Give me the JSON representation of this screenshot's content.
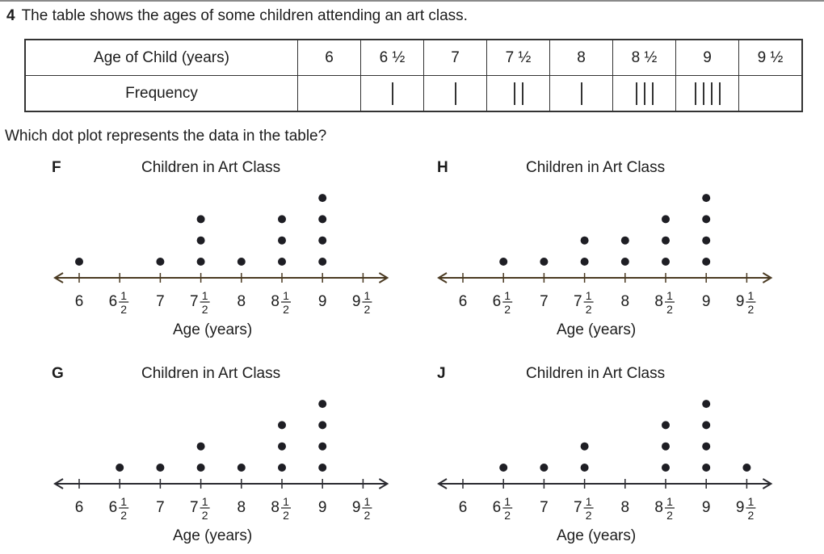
{
  "question": {
    "number": "4",
    "text": "The table shows the ages of some children attending an art class."
  },
  "table": {
    "row_headers": [
      "Age of Child (years)",
      "Frequency"
    ],
    "ages": [
      "6",
      "6 ½",
      "7",
      "7 ½",
      "8",
      "8 ½",
      "9",
      "9 ½"
    ],
    "tallies": [
      0,
      1,
      1,
      2,
      1,
      3,
      4,
      0
    ]
  },
  "prompt": "Which dot plot represents the data in the table?",
  "chart_data": [
    {
      "type": "scatter",
      "subtype": "dot-plot",
      "option": "F",
      "title": "Children in Art Class",
      "xlabel": "Age (years)",
      "tick_values": [
        6,
        6.5,
        7,
        7.5,
        8,
        8.5,
        9,
        9.5
      ],
      "tick_whole": [
        "6",
        "6",
        "7",
        "7",
        "8",
        "8",
        "9",
        "9"
      ],
      "tick_has_half": [
        false,
        true,
        false,
        true,
        false,
        true,
        false,
        true
      ],
      "half_num": "1",
      "half_den": "2",
      "xlim": [
        6,
        9.5
      ],
      "counts": [
        1,
        0,
        1,
        3,
        1,
        3,
        4,
        0
      ]
    },
    {
      "type": "scatter",
      "subtype": "dot-plot",
      "option": "H",
      "title": "Children in Art Class",
      "xlabel": "Age (years)",
      "tick_values": [
        6,
        6.5,
        7,
        7.5,
        8,
        8.5,
        9,
        9.5
      ],
      "tick_whole": [
        "6",
        "6",
        "7",
        "7",
        "8",
        "8",
        "9",
        "9"
      ],
      "tick_has_half": [
        false,
        true,
        false,
        true,
        false,
        true,
        false,
        true
      ],
      "half_num": "1",
      "half_den": "2",
      "xlim": [
        6,
        9.5
      ],
      "counts": [
        0,
        1,
        1,
        2,
        2,
        3,
        4,
        0
      ]
    },
    {
      "type": "scatter",
      "subtype": "dot-plot",
      "option": "G",
      "title": "Children in Art Class",
      "xlabel": "Age (years)",
      "tick_values": [
        6,
        6.5,
        7,
        7.5,
        8,
        8.5,
        9,
        9.5
      ],
      "tick_whole": [
        "6",
        "6",
        "7",
        "7",
        "8",
        "8",
        "9",
        "9"
      ],
      "tick_has_half": [
        false,
        true,
        false,
        true,
        false,
        true,
        false,
        true
      ],
      "half_num": "1",
      "half_den": "2",
      "xlim": [
        6,
        9.5
      ],
      "counts": [
        0,
        1,
        1,
        2,
        1,
        3,
        4,
        0
      ]
    },
    {
      "type": "scatter",
      "subtype": "dot-plot",
      "option": "J",
      "title": "Children in Art Class",
      "xlabel": "Age (years)",
      "tick_values": [
        6,
        6.5,
        7,
        7.5,
        8,
        8.5,
        9,
        9.5
      ],
      "tick_whole": [
        "6",
        "6",
        "7",
        "7",
        "8",
        "8",
        "9",
        "9"
      ],
      "tick_has_half": [
        false,
        true,
        false,
        true,
        false,
        true,
        false,
        true
      ],
      "half_num": "1",
      "half_den": "2",
      "xlim": [
        6,
        9.5
      ],
      "counts": [
        0,
        1,
        1,
        2,
        0,
        3,
        4,
        1
      ]
    }
  ],
  "colors": {
    "text": "#1c1c1c",
    "dot": "#1e1e24",
    "axis_F_H": "#4a3a22",
    "axis_G_J": "#2a2a30"
  }
}
